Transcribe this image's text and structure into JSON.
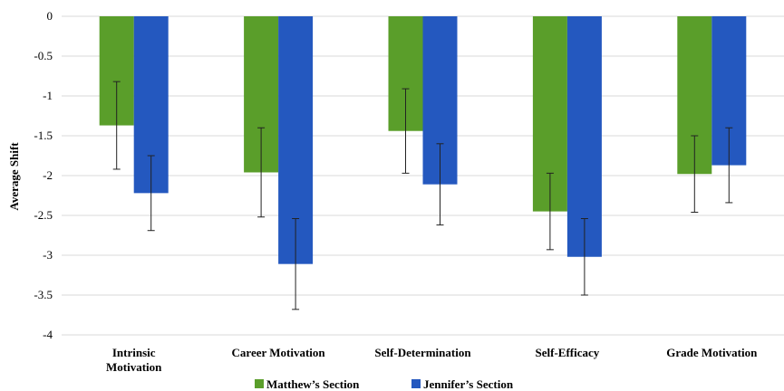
{
  "chart_data": {
    "type": "bar",
    "title": "",
    "xlabel": "",
    "ylabel": "Average Shift",
    "ylim": [
      -4,
      0
    ],
    "yticks": [
      0,
      -0.5,
      -1,
      -1.5,
      -2,
      -2.5,
      -3,
      -3.5,
      -4
    ],
    "grid": true,
    "legend_position": "bottom",
    "categories": [
      [
        "Intrinsic",
        "Motivation"
      ],
      [
        "Career Motivation"
      ],
      [
        "Self-Determination"
      ],
      [
        "Self-Efficacy"
      ],
      [
        "Grade Motivation"
      ]
    ],
    "series": [
      {
        "name": "Matthew’s Section",
        "color": "#5a9e2a",
        "values": [
          -1.37,
          -1.96,
          -1.44,
          -2.45,
          -1.98
        ],
        "error": [
          0.55,
          0.56,
          0.53,
          0.48,
          0.48
        ]
      },
      {
        "name": "Jennifer’s Section",
        "color": "#2458bf",
        "values": [
          -2.22,
          -3.11,
          -2.11,
          -3.02,
          -1.87
        ],
        "error": [
          0.47,
          0.57,
          0.51,
          0.48,
          0.47
        ]
      }
    ]
  }
}
